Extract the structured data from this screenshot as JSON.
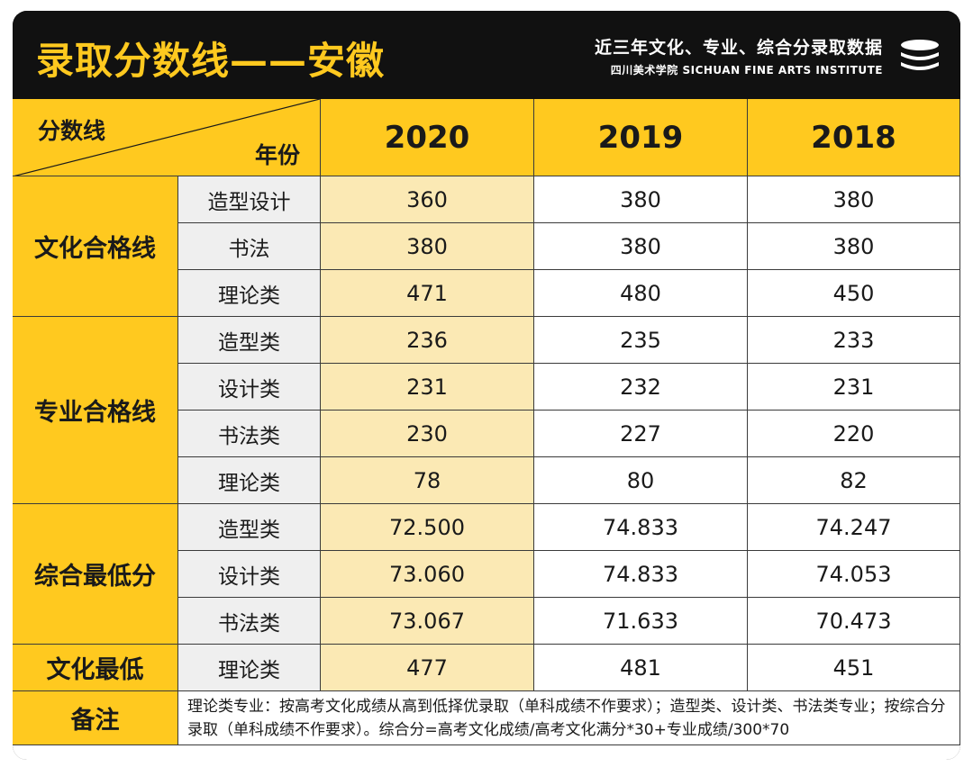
{
  "header": {
    "title": "录取分数线——安徽",
    "subtitle": "近三年文化、专业、综合分录取数据",
    "institute": "四川美术学院 SICHUAN FINE ARTS INSTITUTE"
  },
  "table": {
    "corner_left": "分数线",
    "corner_right": "年份",
    "years": [
      "2020",
      "2019",
      "2018"
    ],
    "groups": [
      {
        "category": "文化合格线",
        "rows": [
          {
            "sub": "造型设计",
            "values": [
              "360",
              "380",
              "380"
            ]
          },
          {
            "sub": "书法",
            "values": [
              "380",
              "380",
              "380"
            ]
          },
          {
            "sub": "理论类",
            "values": [
              "471",
              "480",
              "450"
            ]
          }
        ]
      },
      {
        "category": "专业合格线",
        "rows": [
          {
            "sub": "造型类",
            "values": [
              "236",
              "235",
              "233"
            ]
          },
          {
            "sub": "设计类",
            "values": [
              "231",
              "232",
              "231"
            ]
          },
          {
            "sub": "书法类",
            "values": [
              "230",
              "227",
              "220"
            ]
          },
          {
            "sub": "理论类",
            "values": [
              "78",
              "80",
              "82"
            ]
          }
        ]
      },
      {
        "category": "综合最低分",
        "rows": [
          {
            "sub": "造型类",
            "values": [
              "72.500",
              "74.833",
              "74.247"
            ]
          },
          {
            "sub": "设计类",
            "values": [
              "73.060",
              "74.833",
              "74.053"
            ]
          },
          {
            "sub": "书法类",
            "values": [
              "73.067",
              "71.633",
              "70.473"
            ]
          }
        ]
      },
      {
        "category": "文化最低",
        "rows": [
          {
            "sub": "理论类",
            "values": [
              "477",
              "481",
              "451"
            ]
          }
        ]
      }
    ],
    "note_label": "备注",
    "note_text": "理论类专业：按高考文化成绩从高到低择优录取（单科成绩不作要求）；造型类、设计类、书法类专业；按综合分录取（单科成绩不作要求）。综合分=高考文化成绩/高考文化满分*30+专业成绩/300*70"
  },
  "colors": {
    "accent": "#ffc91f",
    "highlight_column": "#fbe9b4",
    "header_bg": "#111111"
  },
  "icons": {
    "logo": "stacked-discs-icon"
  }
}
